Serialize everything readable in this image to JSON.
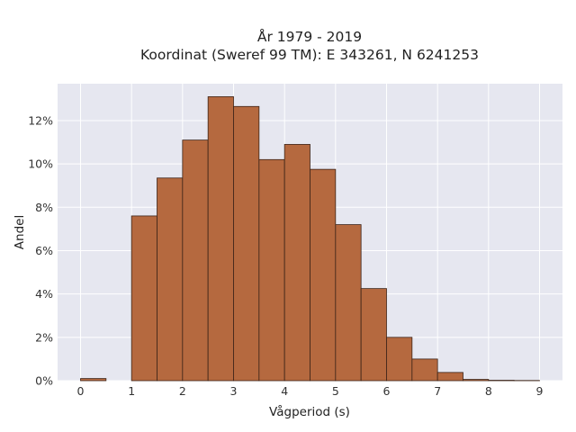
{
  "chart_data": {
    "type": "bar",
    "title_lines": [
      "År 1979 - 2019",
      "Koordinat (Sweref 99 TM): E 343261, N 6241253"
    ],
    "xlabel": "Vågperiod (s)",
    "ylabel": "Andel",
    "xlim": [
      -0.45,
      9.45
    ],
    "ylim": [
      0,
      13.7
    ],
    "bin_width": 0.5,
    "x": [
      0,
      0.5,
      1,
      1.5,
      2,
      2.5,
      3,
      3.5,
      4,
      4.5,
      5,
      5.5,
      6,
      6.5,
      7,
      7.5,
      8,
      8.5
    ],
    "values": [
      0.1,
      0,
      7.6,
      9.35,
      11.1,
      13.1,
      12.65,
      10.2,
      10.9,
      9.75,
      7.2,
      4.25,
      2.0,
      1.0,
      0.38,
      0.06,
      0.02,
      0.01
    ],
    "x_ticks": [
      0,
      1,
      2,
      3,
      4,
      5,
      6,
      7,
      8,
      9
    ],
    "x_tick_labels": [
      "0",
      "1",
      "2",
      "3",
      "4",
      "5",
      "6",
      "7",
      "8",
      "9"
    ],
    "y_ticks": [
      0,
      2,
      4,
      6,
      8,
      10,
      12
    ],
    "y_tick_labels": [
      "0%",
      "2%",
      "4%",
      "6%",
      "8%",
      "10%",
      "12%"
    ],
    "grid": true,
    "colors": {
      "bar_fill": "#b5693f",
      "bar_stroke": "#3d2418",
      "plot_background": "#e6e7f0",
      "grid": "#ffffff"
    }
  }
}
